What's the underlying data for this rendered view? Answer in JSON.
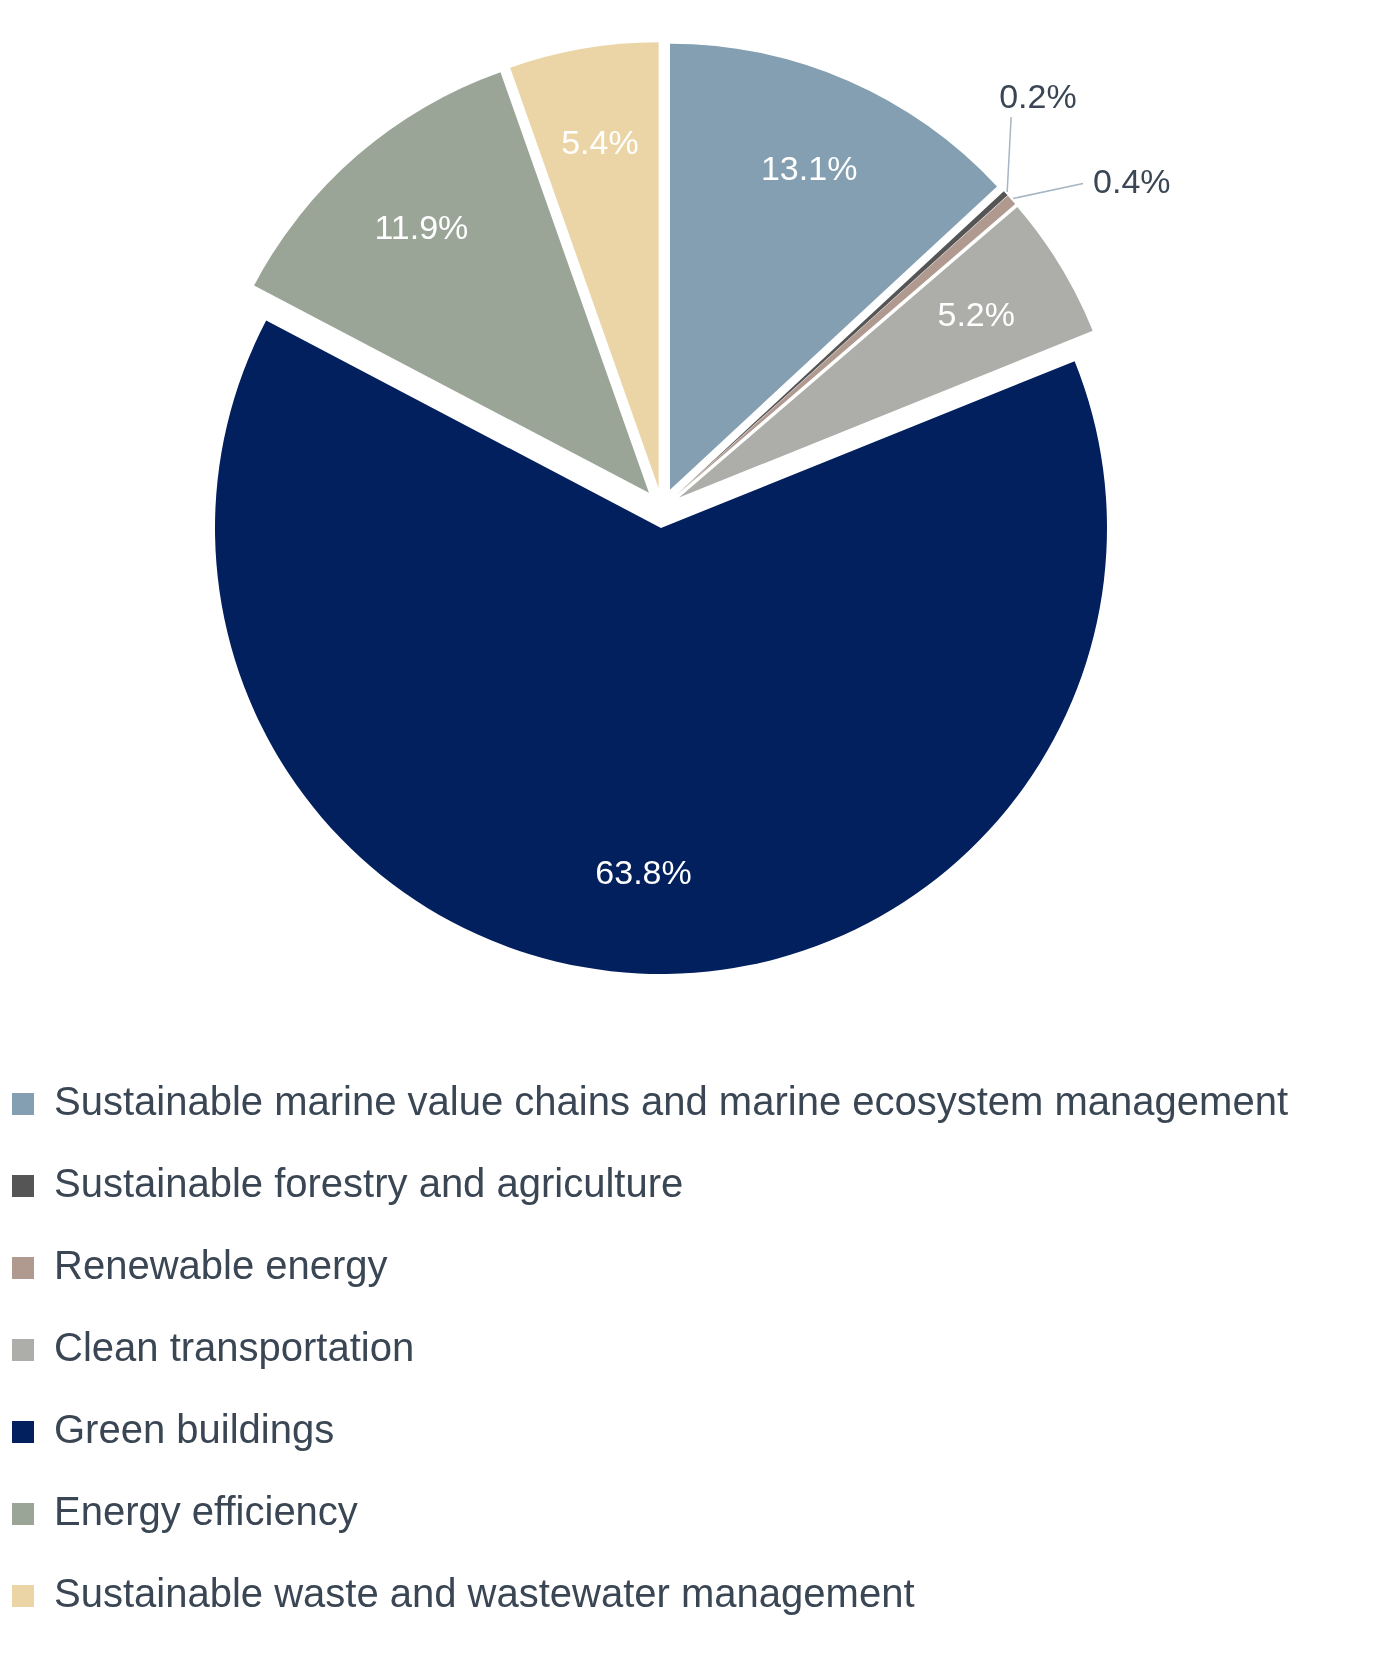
{
  "chart_data": {
    "type": "pie",
    "categories": [
      "Sustainable marine value chains and marine ecosystem management",
      "Sustainable forestry and agriculture",
      "Renewable energy",
      "Clean transportation",
      "Green buildings",
      "Energy efficiency",
      "Sustainable waste and wastewater management"
    ],
    "values": [
      13.1,
      0.2,
      0.4,
      5.2,
      63.8,
      11.9,
      5.4
    ],
    "colors": [
      "#849fb1",
      "#555555",
      "#b09a90",
      "#adadaa",
      "#021f5e",
      "#9aa597",
      "#ebd5a6"
    ],
    "value_labels": [
      "13.1%",
      "0.2%",
      "0.4%",
      "5.2%",
      "63.8%",
      "11.9%",
      "5.4%"
    ],
    "legend": "bottom"
  }
}
